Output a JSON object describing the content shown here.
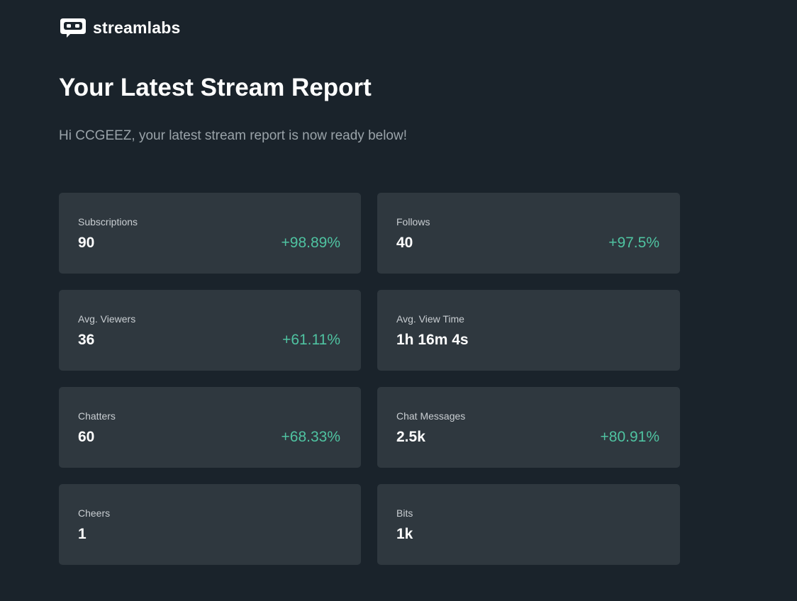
{
  "header": {
    "logo_icon": "streamlabs-logo-icon",
    "logo_text": "streamlabs"
  },
  "report": {
    "title": "Your Latest Stream Report",
    "intro": "Hi CCGEEZ, your latest stream report is now ready below!"
  },
  "colors": {
    "background": "#1a232b",
    "card": "#2f383f",
    "positive": "#4fc3a1",
    "muted_text": "#9aa3a9"
  },
  "stats": [
    {
      "label": "Subscriptions",
      "value": "90",
      "change": "+98.89%"
    },
    {
      "label": "Follows",
      "value": "40",
      "change": "+97.5%"
    },
    {
      "label": "Avg. Viewers",
      "value": "36",
      "change": "+61.11%"
    },
    {
      "label": "Avg. View Time",
      "value": "1h 16m 4s",
      "change": ""
    },
    {
      "label": "Chatters",
      "value": "60",
      "change": "+68.33%"
    },
    {
      "label": "Chat Messages",
      "value": "2.5k",
      "change": "+80.91%"
    },
    {
      "label": "Cheers",
      "value": "1",
      "change": ""
    },
    {
      "label": "Bits",
      "value": "1k",
      "change": ""
    }
  ]
}
